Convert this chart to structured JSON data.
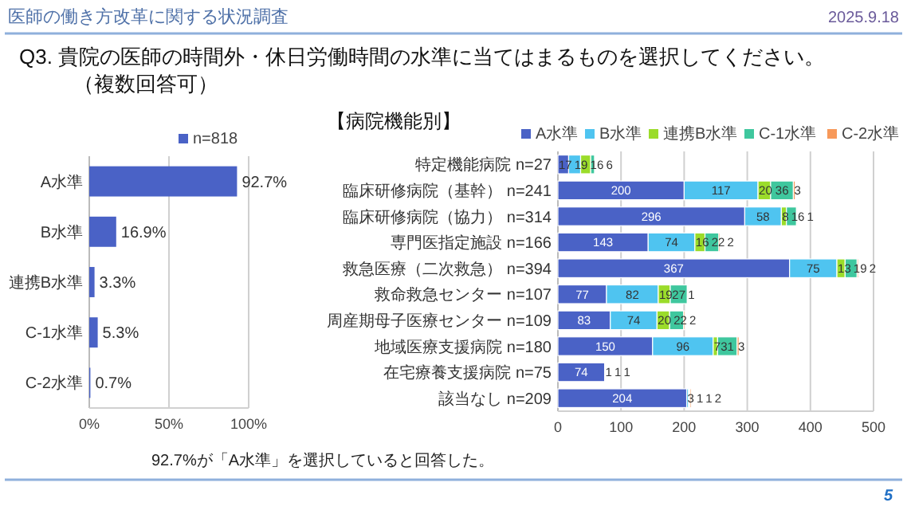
{
  "chart_data": [
    {
      "type": "other",
      "title": "医師の働き方改革に関する状況調査",
      "subtitle": "Q3.  貴院の医師の時間外・休日労働時間の水準に当てはまるものを選択してください。",
      "annotations": [
        "2025.9.18",
        "（複数回答可）",
        "5"
      ]
    },
    {
      "type": "bar",
      "orientation": "horizontal",
      "categories": [
        "A水準",
        "B水準",
        "連携B水準",
        "C-1水準",
        "C-2水準"
      ],
      "series": [
        {
          "name": "n=818",
          "color": "#4a62c6",
          "values": [
            92.7,
            16.9,
            3.3,
            5.3,
            0.7
          ],
          "value_labels": [
            "92.7%",
            "16.9%",
            "3.3%",
            "5.3%",
            "0.7%"
          ]
        }
      ],
      "xlim": [
        0,
        100
      ],
      "xticks": [
        {
          "value": 0,
          "label": "0%"
        },
        {
          "value": 50,
          "label": "50%"
        },
        {
          "value": 100,
          "label": "100%"
        }
      ],
      "grid": "x",
      "legend": "top right",
      "annotations": [
        "92.7%が「A水準」を選択していると回答した。"
      ]
    },
    {
      "type": "bar",
      "orientation": "horizontal",
      "stacked": true,
      "title": "【病院機能別】",
      "categories": [
        "特定機能病院 n=27",
        "臨床研修病院（基幹） n=241",
        "臨床研修病院（協力） n=314",
        "専門医指定施設 n=166",
        "救急医療（二次救急） n=394",
        "救命救急センター n=107",
        "周産期母子医療センター n=109",
        "地域医療支援病院 n=180",
        "在宅療養支援病院 n=75",
        "該当なし n=209"
      ],
      "series": [
        {
          "name": "A水準",
          "color": "#4a62c6",
          "values": [
            17,
            200,
            296,
            143,
            367,
            77,
            83,
            150,
            74,
            204
          ]
        },
        {
          "name": "B水準",
          "color": "#4fc4f0",
          "values": [
            19,
            117,
            58,
            74,
            75,
            82,
            74,
            96,
            1,
            3
          ]
        },
        {
          "name": "連携B水準",
          "color": "#9bdc2a",
          "values": [
            16,
            20,
            8,
            16,
            13,
            19,
            20,
            7,
            null,
            1
          ]
        },
        {
          "name": "C-1水準",
          "color": "#3fc79e",
          "values": [
            6,
            36,
            16,
            22,
            19,
            27,
            22,
            31,
            1,
            1
          ]
        },
        {
          "name": "C-2水準",
          "color": "#f7995a",
          "values": [
            null,
            3,
            1,
            2,
            2,
            1,
            2,
            3,
            1,
            2
          ]
        }
      ],
      "xlim": [
        0,
        500
      ],
      "xticks": [
        0,
        100,
        200,
        300,
        400,
        500
      ],
      "grid": "x",
      "legend": "top",
      "data_labels": true
    }
  ]
}
